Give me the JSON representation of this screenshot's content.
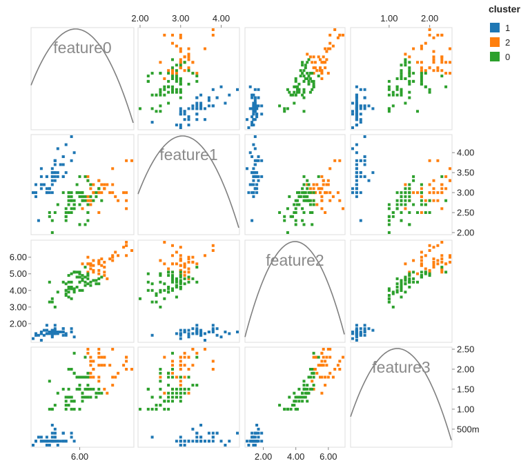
{
  "chart_data": {
    "type": "scatter",
    "layout": "scatter-matrix",
    "features": [
      "feature0",
      "feature1",
      "feature2",
      "feature3"
    ],
    "axes": {
      "feature0": {
        "range": [
          4.3,
          7.9
        ],
        "ticks": [
          6.0
        ],
        "tick_labels": [
          "6.00"
        ]
      },
      "feature1": {
        "range": [
          2.0,
          4.4
        ],
        "ticks": [
          2.0,
          2.5,
          3.0,
          3.5,
          4.0
        ],
        "tick_labels": [
          "2.00",
          "2.50",
          "3.00",
          "3.50",
          "4.00"
        ],
        "top_tick_labels": [
          "2.00",
          "3.00",
          "4.00"
        ]
      },
      "feature2": {
        "range": [
          1.0,
          6.9
        ],
        "ticks": [
          2.0,
          3.0,
          4.0,
          5.0,
          6.0
        ],
        "tick_labels": [
          "2.00",
          "3.00",
          "4.00",
          "5.00",
          "6.00"
        ],
        "bottom_tick_labels": [
          "2.00",
          "4.00",
          "6.00"
        ]
      },
      "feature3": {
        "range": [
          0.1,
          2.5
        ],
        "ticks": [
          0.5,
          1.0,
          1.5,
          2.0,
          2.5
        ],
        "tick_labels": [
          "500m",
          "1.00",
          "1.50",
          "2.00",
          "2.50"
        ],
        "top_tick_labels": [
          "1.00",
          "2.00"
        ]
      }
    },
    "diagonal_density_peaks": {
      "feature0": 5.85,
      "feature1": 3.05,
      "feature2": 3.95,
      "feature3": 1.2
    },
    "legend": {
      "title": "cluster",
      "entries": [
        {
          "label": "1",
          "color": "#1f77b4"
        },
        {
          "label": "2",
          "color": "#ff7f0e"
        },
        {
          "label": "0",
          "color": "#2ca02c"
        }
      ]
    },
    "series": [
      {
        "name": "1",
        "color": "#1f77b4",
        "points": [
          [
            5.1,
            3.5,
            1.4,
            0.2
          ],
          [
            4.9,
            3.0,
            1.4,
            0.2
          ],
          [
            4.7,
            3.2,
            1.3,
            0.2
          ],
          [
            4.6,
            3.1,
            1.5,
            0.2
          ],
          [
            5.0,
            3.6,
            1.4,
            0.2
          ],
          [
            5.4,
            3.9,
            1.7,
            0.4
          ],
          [
            4.6,
            3.4,
            1.4,
            0.3
          ],
          [
            5.0,
            3.4,
            1.5,
            0.2
          ],
          [
            4.4,
            2.9,
            1.4,
            0.2
          ],
          [
            4.9,
            3.1,
            1.5,
            0.1
          ],
          [
            5.4,
            3.7,
            1.5,
            0.2
          ],
          [
            4.8,
            3.4,
            1.6,
            0.2
          ],
          [
            4.8,
            3.0,
            1.4,
            0.1
          ],
          [
            4.3,
            3.0,
            1.1,
            0.1
          ],
          [
            5.8,
            4.0,
            1.2,
            0.2
          ],
          [
            5.7,
            4.4,
            1.5,
            0.4
          ],
          [
            5.4,
            3.9,
            1.3,
            0.4
          ],
          [
            5.1,
            3.5,
            1.4,
            0.3
          ],
          [
            5.7,
            3.8,
            1.7,
            0.3
          ],
          [
            5.1,
            3.8,
            1.5,
            0.3
          ],
          [
            5.4,
            3.4,
            1.7,
            0.2
          ],
          [
            5.1,
            3.7,
            1.5,
            0.4
          ],
          [
            4.6,
            3.6,
            1.0,
            0.2
          ],
          [
            5.1,
            3.3,
            1.7,
            0.5
          ],
          [
            4.8,
            3.4,
            1.9,
            0.2
          ],
          [
            5.0,
            3.0,
            1.6,
            0.2
          ],
          [
            5.0,
            3.4,
            1.6,
            0.4
          ],
          [
            5.2,
            3.5,
            1.5,
            0.2
          ],
          [
            5.2,
            3.4,
            1.4,
            0.2
          ],
          [
            4.7,
            3.2,
            1.6,
            0.2
          ],
          [
            4.8,
            3.1,
            1.6,
            0.2
          ],
          [
            5.4,
            3.4,
            1.5,
            0.4
          ],
          [
            5.2,
            4.1,
            1.5,
            0.1
          ],
          [
            5.5,
            4.2,
            1.4,
            0.2
          ],
          [
            4.9,
            3.1,
            1.5,
            0.2
          ],
          [
            5.0,
            3.2,
            1.2,
            0.2
          ],
          [
            5.5,
            3.5,
            1.3,
            0.2
          ],
          [
            4.4,
            3.0,
            1.3,
            0.2
          ],
          [
            5.1,
            3.4,
            1.5,
            0.2
          ],
          [
            5.0,
            3.5,
            1.3,
            0.3
          ],
          [
            4.5,
            2.3,
            1.3,
            0.3
          ],
          [
            4.4,
            3.2,
            1.3,
            0.2
          ],
          [
            5.0,
            3.5,
            1.6,
            0.6
          ],
          [
            5.1,
            3.8,
            1.9,
            0.4
          ],
          [
            4.8,
            3.0,
            1.4,
            0.3
          ],
          [
            5.1,
            3.8,
            1.6,
            0.2
          ],
          [
            4.6,
            3.2,
            1.4,
            0.2
          ],
          [
            5.3,
            3.7,
            1.5,
            0.2
          ],
          [
            5.0,
            3.3,
            1.4,
            0.2
          ]
        ]
      },
      {
        "name": "2",
        "color": "#ff7f0e",
        "points": [
          [
            7.0,
            3.2,
            4.7,
            1.4
          ],
          [
            6.9,
            3.1,
            4.9,
            1.5
          ],
          [
            6.7,
            3.0,
            5.0,
            1.7
          ],
          [
            6.3,
            3.3,
            6.0,
            2.5
          ],
          [
            7.1,
            3.0,
            5.9,
            2.1
          ],
          [
            6.3,
            2.9,
            5.6,
            1.8
          ],
          [
            6.5,
            3.0,
            5.8,
            2.2
          ],
          [
            7.6,
            3.0,
            6.6,
            2.1
          ],
          [
            7.3,
            2.9,
            6.3,
            1.8
          ],
          [
            6.7,
            2.5,
            5.8,
            1.8
          ],
          [
            7.2,
            3.6,
            6.1,
            2.5
          ],
          [
            6.5,
            3.2,
            5.1,
            2.0
          ],
          [
            6.4,
            2.7,
            5.3,
            1.9
          ],
          [
            6.8,
            3.0,
            5.5,
            2.1
          ],
          [
            6.4,
            3.2,
            5.3,
            2.3
          ],
          [
            6.5,
            3.0,
            5.5,
            1.8
          ],
          [
            7.7,
            3.8,
            6.7,
            2.2
          ],
          [
            7.7,
            2.6,
            6.9,
            2.3
          ],
          [
            6.9,
            3.2,
            5.7,
            2.3
          ],
          [
            7.7,
            2.8,
            6.7,
            2.0
          ],
          [
            6.7,
            3.3,
            5.7,
            2.1
          ],
          [
            7.2,
            3.2,
            6.0,
            1.8
          ],
          [
            6.4,
            2.8,
            5.6,
            2.1
          ],
          [
            7.2,
            3.0,
            5.8,
            1.6
          ],
          [
            7.4,
            2.8,
            6.1,
            1.9
          ],
          [
            7.9,
            3.8,
            6.4,
            2.0
          ],
          [
            6.4,
            2.8,
            5.6,
            2.2
          ],
          [
            6.3,
            2.8,
            5.1,
            1.5
          ],
          [
            6.1,
            2.6,
            5.6,
            1.4
          ],
          [
            7.7,
            3.0,
            6.1,
            2.3
          ],
          [
            6.3,
            3.4,
            5.6,
            2.4
          ],
          [
            6.4,
            3.1,
            5.5,
            1.8
          ],
          [
            6.9,
            3.1,
            5.4,
            2.1
          ],
          [
            6.7,
            3.1,
            5.6,
            2.4
          ],
          [
            6.9,
            3.1,
            5.1,
            2.3
          ],
          [
            6.8,
            3.2,
            5.9,
            2.3
          ],
          [
            6.7,
            3.3,
            5.7,
            2.5
          ],
          [
            6.7,
            3.0,
            5.2,
            2.3
          ],
          [
            6.5,
            3.0,
            5.2,
            2.0
          ]
        ]
      },
      {
        "name": "0",
        "color": "#2ca02c",
        "points": [
          [
            6.4,
            3.2,
            4.5,
            1.5
          ],
          [
            5.5,
            2.3,
            4.0,
            1.3
          ],
          [
            6.5,
            2.8,
            4.6,
            1.5
          ],
          [
            5.7,
            2.8,
            4.5,
            1.3
          ],
          [
            6.3,
            3.3,
            4.7,
            1.6
          ],
          [
            4.9,
            2.4,
            3.3,
            1.0
          ],
          [
            6.6,
            2.9,
            4.6,
            1.3
          ],
          [
            5.2,
            2.7,
            3.9,
            1.4
          ],
          [
            5.0,
            2.0,
            3.5,
            1.0
          ],
          [
            5.9,
            3.0,
            4.2,
            1.5
          ],
          [
            6.0,
            2.2,
            4.0,
            1.0
          ],
          [
            6.1,
            2.9,
            4.7,
            1.4
          ],
          [
            5.6,
            2.9,
            3.6,
            1.3
          ],
          [
            6.7,
            3.1,
            4.4,
            1.4
          ],
          [
            5.6,
            3.0,
            4.5,
            1.5
          ],
          [
            5.8,
            2.7,
            4.1,
            1.0
          ],
          [
            6.2,
            2.2,
            4.5,
            1.5
          ],
          [
            5.6,
            2.5,
            3.9,
            1.1
          ],
          [
            5.9,
            3.2,
            4.8,
            1.8
          ],
          [
            6.1,
            2.8,
            4.0,
            1.3
          ],
          [
            6.3,
            2.5,
            4.9,
            1.5
          ],
          [
            6.1,
            2.8,
            4.7,
            1.2
          ],
          [
            6.4,
            2.9,
            4.3,
            1.3
          ],
          [
            6.6,
            3.0,
            4.4,
            1.4
          ],
          [
            6.8,
            2.8,
            4.8,
            1.4
          ],
          [
            6.0,
            2.9,
            4.5,
            1.5
          ],
          [
            5.7,
            2.6,
            3.5,
            1.0
          ],
          [
            5.5,
            2.4,
            3.8,
            1.1
          ],
          [
            5.5,
            2.4,
            3.7,
            1.0
          ],
          [
            5.8,
            2.7,
            3.9,
            1.2
          ],
          [
            6.0,
            2.7,
            5.1,
            1.6
          ],
          [
            5.4,
            3.0,
            4.5,
            1.5
          ],
          [
            6.0,
            3.4,
            4.5,
            1.6
          ],
          [
            6.7,
            3.1,
            4.7,
            1.5
          ],
          [
            6.3,
            2.3,
            4.4,
            1.3
          ],
          [
            5.6,
            3.0,
            4.1,
            1.3
          ],
          [
            5.5,
            2.5,
            4.0,
            1.3
          ],
          [
            5.5,
            2.6,
            4.4,
            1.2
          ],
          [
            6.1,
            3.0,
            4.6,
            1.4
          ],
          [
            5.8,
            2.6,
            4.0,
            1.2
          ],
          [
            5.0,
            2.3,
            3.3,
            1.0
          ],
          [
            5.6,
            2.7,
            4.2,
            1.3
          ],
          [
            5.7,
            3.0,
            4.2,
            1.2
          ],
          [
            5.7,
            2.9,
            4.2,
            1.3
          ],
          [
            6.2,
            2.9,
            4.3,
            1.3
          ],
          [
            5.1,
            2.5,
            3.0,
            1.1
          ],
          [
            5.7,
            2.8,
            4.1,
            1.3
          ],
          [
            5.8,
            2.7,
            5.1,
            1.9
          ],
          [
            4.9,
            2.5,
            4.5,
            1.7
          ],
          [
            5.7,
            2.5,
            5.0,
            2.0
          ],
          [
            5.8,
            2.8,
            5.1,
            2.4
          ],
          [
            6.0,
            2.2,
            5.0,
            1.5
          ],
          [
            5.6,
            2.8,
            4.9,
            2.0
          ],
          [
            6.3,
            2.7,
            4.9,
            1.8
          ],
          [
            6.2,
            2.8,
            4.8,
            1.8
          ],
          [
            6.1,
            3.0,
            4.9,
            1.8
          ],
          [
            6.3,
            2.5,
            5.0,
            1.9
          ],
          [
            5.9,
            3.0,
            5.1,
            1.8
          ],
          [
            6.0,
            3.0,
            4.8,
            1.8
          ],
          [
            5.8,
            2.7,
            5.1,
            1.9
          ],
          [
            6.2,
            3.4,
            5.4,
            2.3
          ]
        ]
      }
    ]
  }
}
